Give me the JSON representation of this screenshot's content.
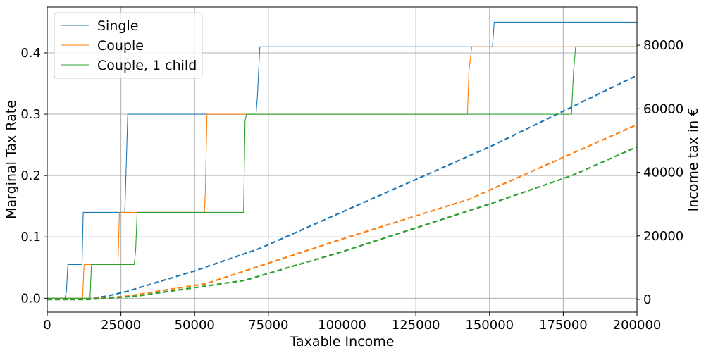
{
  "chart_data": {
    "type": "line",
    "xlabel": "Taxable Income",
    "ylabel_left": "Marginal Tax Rate",
    "ylabel_right": "Income tax in €",
    "xlim": [
      0,
      200000
    ],
    "ylim_left": [
      -0.0226,
      0.4746
    ],
    "ylim_right": [
      -4000,
      92000
    ],
    "xticks": [
      0,
      25000,
      50000,
      75000,
      100000,
      125000,
      150000,
      175000,
      200000
    ],
    "yticks_left": [
      0.0,
      0.1,
      0.2,
      0.3,
      0.4
    ],
    "yticks_right": [
      0,
      20000,
      40000,
      60000,
      80000
    ],
    "grid": true,
    "legend_position": "upper-left",
    "series": [
      {
        "name": "Single",
        "color": "#1f77b4",
        "marginal_rate": [
          [
            0,
            0
          ],
          [
            6000,
            0
          ],
          [
            6500,
            0.01
          ],
          [
            7000,
            0.055
          ],
          [
            11800,
            0.055
          ],
          [
            12200,
            0.14
          ],
          [
            26300,
            0.14
          ],
          [
            26700,
            0.2
          ],
          [
            27300,
            0.3
          ],
          [
            70800,
            0.3
          ],
          [
            71300,
            0.33
          ],
          [
            72100,
            0.41
          ],
          [
            151000,
            0.41
          ],
          [
            151600,
            0.45
          ],
          [
            200000,
            0.45
          ]
        ],
        "income_tax": [
          [
            0,
            0
          ],
          [
            12000,
            0
          ],
          [
            20000,
            1000
          ],
          [
            27000,
            2500
          ],
          [
            50000,
            9000
          ],
          [
            72000,
            16000
          ],
          [
            100000,
            27500
          ],
          [
            150000,
            48000
          ],
          [
            200000,
            70500
          ]
        ]
      },
      {
        "name": "Couple",
        "color": "#ff7f0e",
        "marginal_rate": [
          [
            0,
            0
          ],
          [
            12000,
            0
          ],
          [
            12500,
            0.055
          ],
          [
            24000,
            0.055
          ],
          [
            24500,
            0.14
          ],
          [
            53300,
            0.14
          ],
          [
            53600,
            0.17
          ],
          [
            54200,
            0.3
          ],
          [
            142500,
            0.3
          ],
          [
            143000,
            0.37
          ],
          [
            144000,
            0.41
          ],
          [
            200000,
            0.41
          ]
        ],
        "income_tax": [
          [
            0,
            0
          ],
          [
            12000,
            0
          ],
          [
            27000,
            1000
          ],
          [
            54000,
            5000
          ],
          [
            100000,
            19000
          ],
          [
            143000,
            31500
          ],
          [
            200000,
            55000
          ]
        ]
      },
      {
        "name": "Couple, 1 child",
        "color": "#2ca02c",
        "marginal_rate": [
          [
            0,
            0
          ],
          [
            14500,
            0
          ],
          [
            15000,
            0.055
          ],
          [
            29500,
            0.055
          ],
          [
            30000,
            0.08
          ],
          [
            30500,
            0.14
          ],
          [
            66600,
            0.14
          ],
          [
            67100,
            0.29
          ],
          [
            67600,
            0.3
          ],
          [
            177800,
            0.3
          ],
          [
            178500,
            0.37
          ],
          [
            179200,
            0.41
          ],
          [
            200000,
            0.41
          ]
        ],
        "income_tax": [
          [
            0,
            0
          ],
          [
            14000,
            0
          ],
          [
            30000,
            1000
          ],
          [
            67000,
            6000
          ],
          [
            100000,
            15000
          ],
          [
            150000,
            30000
          ],
          [
            178000,
            39000
          ],
          [
            200000,
            48000
          ]
        ]
      }
    ]
  }
}
